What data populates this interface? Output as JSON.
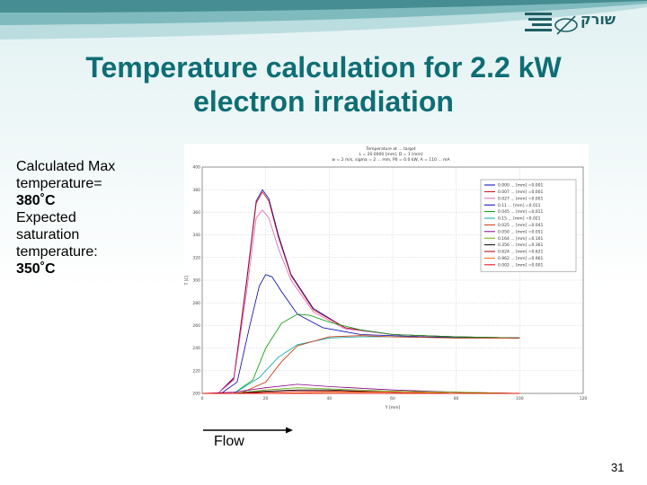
{
  "slide": {
    "title_line1": "Temperature calculation for 2.2 kW",
    "title_line2": "electron irradiation",
    "notes": {
      "l1": "Calculated Max",
      "l2": "temperature=",
      "l3": "380˚C",
      "l4": "Expected",
      "l5": "saturation",
      "l6": "temperature:",
      "l7": "350˚C"
    },
    "logo_text": "שורק",
    "flow_label": "Flow",
    "page_number": "31"
  },
  "colors": {
    "title": "#0e6e74",
    "accent_band": "#1f6f74",
    "background_top": "#e2f1f2"
  },
  "chart_data": {
    "type": "line",
    "title": "Temperature at ... target",
    "subtitle1": "L = 20.0000 [mm], D = 1 [mm]",
    "subtitle2": "w = 2 m/s, sigma = 2 ... mm, P0 = 0.0 kW, A = 110 ... mA",
    "xlabel": "Y [mm]",
    "ylabel": "T [C]",
    "xlim": [
      0,
      120
    ],
    "ylim": [
      200,
      400
    ],
    "xticks": [
      "0",
      "20",
      "40",
      "60",
      "80",
      "100",
      "120"
    ],
    "yticks": [
      "200",
      "220",
      "240",
      "260",
      "280",
      "300",
      "320",
      "340",
      "360",
      "380",
      "400"
    ],
    "grid": true,
    "legend_placement": "top-right",
    "series": [
      {
        "name": "0.000 ... [mm] =0.001",
        "color": "#0000bb",
        "x": [
          0,
          5,
          10,
          14,
          17,
          19,
          21,
          24,
          28,
          35,
          45,
          60,
          80,
          100
        ],
        "values": [
          200,
          200,
          214,
          300,
          370,
          380,
          372,
          340,
          305,
          275,
          258,
          252,
          250,
          249
        ]
      },
      {
        "name": "0.007 ... [mm] =0.001",
        "color": "#cc0000",
        "x": [
          0,
          5,
          10,
          14,
          17,
          19,
          21,
          24,
          28,
          35,
          45,
          60,
          80,
          100
        ],
        "values": [
          200,
          200,
          213,
          298,
          368,
          378,
          370,
          338,
          304,
          274,
          258,
          252,
          250,
          249
        ]
      },
      {
        "name": "0.027 ... [mm] =0.001",
        "color": "#d966b3",
        "x": [
          0,
          5,
          10,
          14,
          17,
          19,
          21,
          24,
          28,
          35,
          45,
          60,
          80,
          100
        ],
        "values": [
          200,
          200,
          212,
          290,
          355,
          362,
          355,
          328,
          300,
          272,
          257,
          252,
          250,
          249
        ]
      },
      {
        "name": "0.11 ... [mm] =0.011",
        "color": "#0000aa",
        "x": [
          0,
          6,
          11,
          15,
          18,
          20,
          22,
          25,
          30,
          38,
          50,
          70,
          100
        ],
        "values": [
          200,
          200,
          210,
          260,
          295,
          305,
          303,
          290,
          270,
          258,
          252,
          250,
          249
        ]
      },
      {
        "name": "0.045 ... [mm] =0.011",
        "color": "#009900",
        "x": [
          0,
          10,
          16,
          20,
          25,
          30,
          34,
          40,
          50,
          60,
          80,
          100
        ],
        "values": [
          200,
          200,
          212,
          240,
          262,
          270,
          269,
          263,
          256,
          252,
          250,
          249
        ]
      },
      {
        "name": "0.15 ... [mm] =0.021",
        "color": "#00aaaa",
        "x": [
          0,
          10,
          18,
          24,
          30,
          40,
          50,
          60,
          80,
          100
        ],
        "values": [
          200,
          200,
          214,
          232,
          243,
          249,
          250,
          250,
          249,
          249
        ]
      },
      {
        "name": "0.025 ... [mm] =0.041",
        "color": "#cc3300",
        "x": [
          0,
          12,
          20,
          25,
          30,
          40,
          50,
          60,
          80,
          100
        ],
        "values": [
          200,
          200,
          210,
          228,
          242,
          250,
          251,
          250,
          249,
          249
        ]
      },
      {
        "name": "0.050 ... [mm] =0.051",
        "color": "#880088",
        "x": [
          0,
          10,
          20,
          30,
          40,
          60,
          80,
          100
        ],
        "values": [
          200,
          201,
          205,
          208,
          206,
          203,
          201,
          200
        ]
      },
      {
        "name": "0.164 ... [mm] =0.161",
        "color": "#66aa00",
        "x": [
          0,
          10,
          20,
          30,
          40,
          60,
          80,
          100
        ],
        "values": [
          200,
          200,
          203,
          205,
          204,
          202,
          201,
          200
        ]
      },
      {
        "name": "0.356 ... [mm] =0.361",
        "color": "#000000",
        "x": [
          0,
          10,
          20,
          30,
          40,
          60,
          80,
          100
        ],
        "values": [
          200,
          200,
          202,
          203,
          203,
          201,
          200,
          200
        ]
      },
      {
        "name": "0.624 ... [mm] =0.621",
        "color": "#aa0000",
        "x": [
          0,
          10,
          20,
          30,
          40,
          60,
          80,
          100
        ],
        "values": [
          200,
          200,
          201,
          202,
          202,
          201,
          200,
          200
        ]
      },
      {
        "name": "0.962 ... [mm] =0.961",
        "color": "#ff6600",
        "x": [
          0,
          20,
          40,
          60,
          80,
          100
        ],
        "values": [
          200,
          200,
          201,
          201,
          200,
          200
        ]
      },
      {
        "name": "0.002 ... [mm] =0.001",
        "color": "#ee0000",
        "x": [
          0,
          20,
          40,
          60,
          80,
          100
        ],
        "values": [
          200,
          200,
          200,
          200,
          200,
          200
        ]
      }
    ]
  }
}
